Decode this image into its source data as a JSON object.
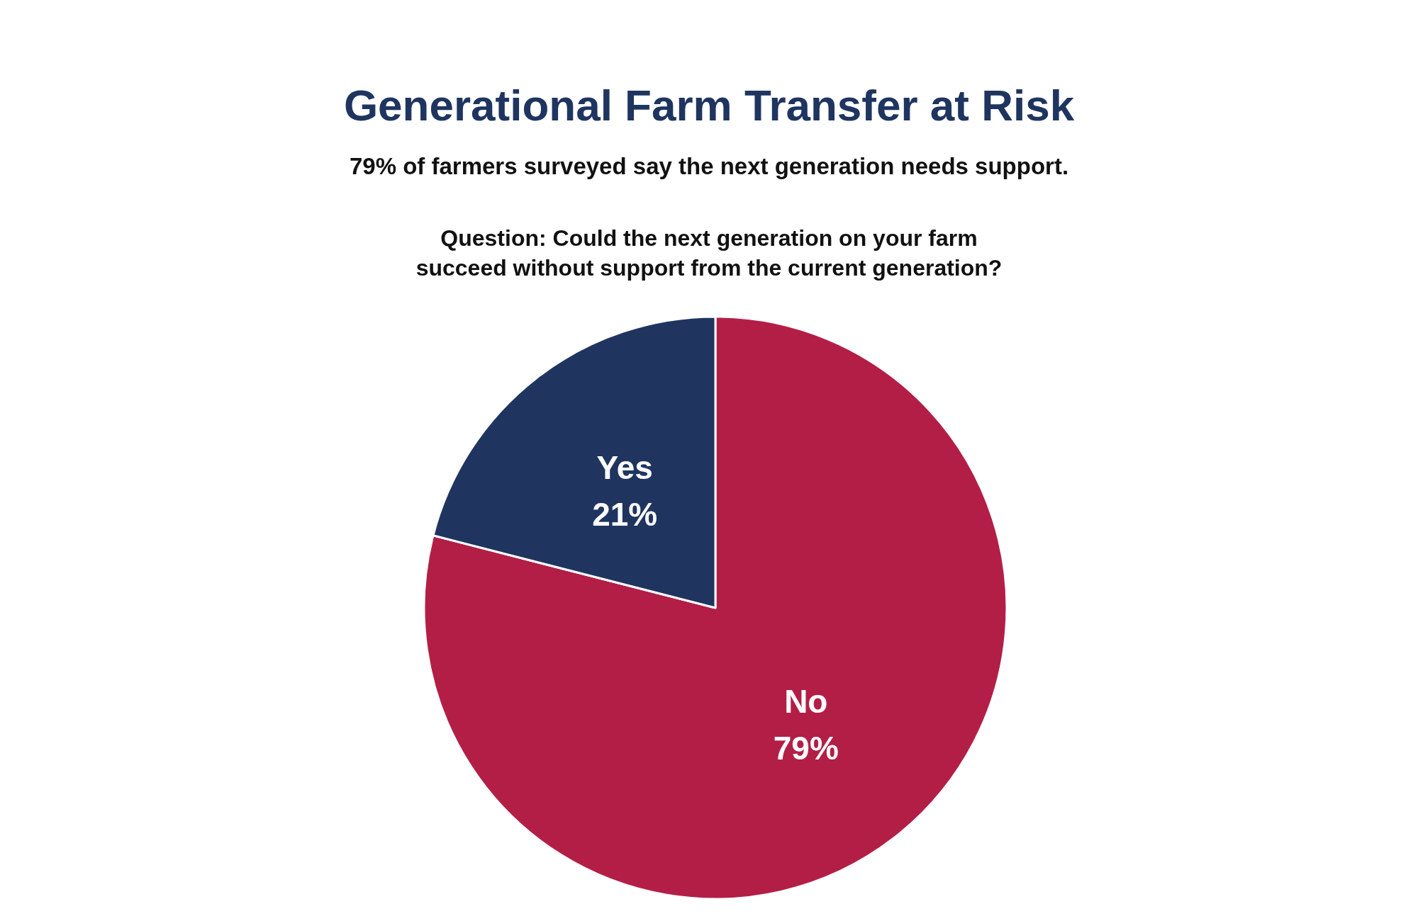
{
  "chart_data": {
    "type": "pie",
    "title": "Generational Farm Transfer at Risk",
    "subtitle": "79% of farmers surveyed say the next generation needs support.",
    "annotations": [
      "Question: Could the next generation on your farm\nsucceed without support from the current generation?"
    ],
    "categories": [
      "No",
      "Yes"
    ],
    "values": [
      79,
      21
    ],
    "colors": [
      "#b31e47",
      "#1f3560"
    ],
    "value_labels": [
      "79%",
      "21%"
    ],
    "legend": false
  }
}
